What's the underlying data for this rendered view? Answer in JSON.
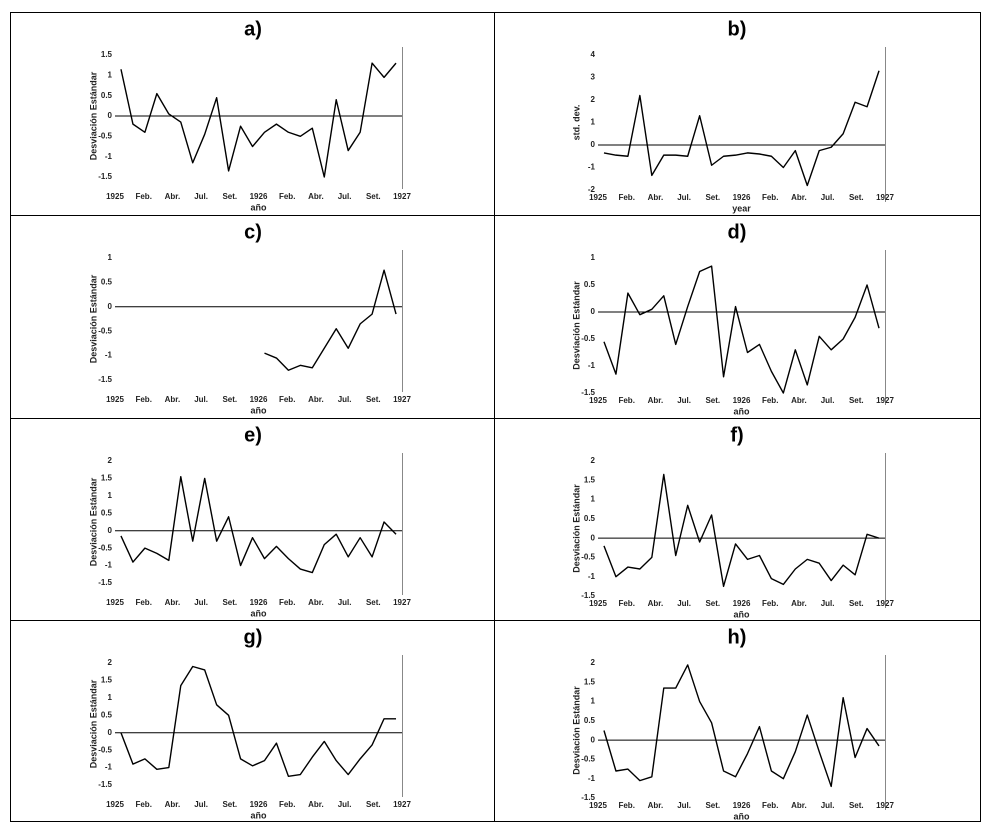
{
  "chart_data": [
    {
      "type": "line",
      "title": "a)",
      "ylabel": "Desviación Estándar",
      "xlabel": "año",
      "color": "#000000",
      "reference_line": 0,
      "x": [
        0.5,
        1.5,
        2.5,
        3.5,
        4.5,
        5.5,
        6.5,
        7.5,
        8.5,
        9.5,
        10.5,
        11.5,
        12.5,
        13.5,
        14.5,
        15.5,
        16.5,
        17.5,
        18.5,
        19.5,
        20.5,
        21.5,
        22.5,
        23.5
      ],
      "values": [
        1.15,
        -0.2,
        -0.4,
        0.55,
        0.05,
        -0.15,
        -1.15,
        -0.45,
        0.45,
        -1.35,
        -0.25,
        -0.75,
        -0.4,
        -0.2,
        -0.4,
        -0.5,
        -0.3,
        -1.5,
        0.4,
        -0.85,
        -0.4,
        1.3,
        0.95,
        1.3
      ],
      "xlim": [
        0,
        24
      ],
      "xticks": [
        {
          "value": 0,
          "label": "1925"
        },
        {
          "value": 2.4,
          "label": "Feb."
        },
        {
          "value": 4.8,
          "label": "Abr."
        },
        {
          "value": 7.2,
          "label": "Jul."
        },
        {
          "value": 9.6,
          "label": "Set."
        },
        {
          "value": 12,
          "label": "1926"
        },
        {
          "value": 14.4,
          "label": "Feb."
        },
        {
          "value": 16.8,
          "label": "Abr."
        },
        {
          "value": 19.2,
          "label": "Jul."
        },
        {
          "value": 21.6,
          "label": "Set."
        },
        {
          "value": 24,
          "label": "1927"
        }
      ],
      "ylim": [
        -1.5,
        1.5
      ],
      "yticks": [
        -1.5,
        -1,
        -0.5,
        0,
        0.5,
        1,
        1.5
      ]
    },
    {
      "type": "line",
      "title": "b)",
      "ylabel": "std. dev.",
      "xlabel": "year",
      "color": "#000000",
      "reference_line": 0,
      "x": [
        0.5,
        1.5,
        2.5,
        3.5,
        4.5,
        5.5,
        6.5,
        7.5,
        8.5,
        9.5,
        10.5,
        11.5,
        12.5,
        13.5,
        14.5,
        15.5,
        16.5,
        17.5,
        18.5,
        19.5,
        20.5,
        21.5,
        22.5,
        23.5
      ],
      "values": [
        -0.35,
        -0.45,
        -0.5,
        2.2,
        -1.35,
        -0.45,
        -0.45,
        -0.5,
        1.3,
        -0.9,
        -0.5,
        -0.45,
        -0.35,
        -0.4,
        -0.5,
        -1.0,
        -0.25,
        -1.8,
        -0.25,
        -0.1,
        0.5,
        1.9,
        1.7,
        3.3
      ],
      "xlim": [
        0,
        24
      ],
      "xticks": [
        {
          "value": 0,
          "label": "1925"
        },
        {
          "value": 2.4,
          "label": "Feb."
        },
        {
          "value": 4.8,
          "label": "Abr."
        },
        {
          "value": 7.2,
          "label": "Jul."
        },
        {
          "value": 9.6,
          "label": "Set."
        },
        {
          "value": 12,
          "label": "1926"
        },
        {
          "value": 14.4,
          "label": "Feb."
        },
        {
          "value": 16.8,
          "label": "Abr."
        },
        {
          "value": 19.2,
          "label": "Jul."
        },
        {
          "value": 21.6,
          "label": "Set."
        },
        {
          "value": 24,
          "label": "1927"
        }
      ],
      "ylim": [
        -2,
        4
      ],
      "yticks": [
        -2,
        -1,
        0,
        1,
        2,
        3,
        4
      ]
    },
    {
      "type": "line",
      "title": "c)",
      "ylabel": "Desviación Estándar",
      "xlabel": "año",
      "color": "#000000",
      "reference_line": 0,
      "x": [
        0.5,
        1.5,
        2.5,
        3.5,
        4.5,
        5.5,
        6.5,
        7.5,
        8.5,
        9.5,
        10.5,
        11.5,
        12.5,
        13.5,
        14.5,
        15.5,
        16.5,
        17.5,
        18.5,
        19.5,
        20.5,
        21.5,
        22.5,
        23.5
      ],
      "values": [
        null,
        null,
        null,
        null,
        null,
        null,
        null,
        null,
        null,
        null,
        null,
        null,
        -0.95,
        -1.05,
        -1.3,
        -1.2,
        -1.25,
        -0.85,
        -0.45,
        -0.85,
        -0.35,
        -0.15,
        0.75,
        -0.15
      ],
      "xlim": [
        0,
        24
      ],
      "xticks": [
        {
          "value": 0,
          "label": "1925"
        },
        {
          "value": 2.4,
          "label": "Feb."
        },
        {
          "value": 4.8,
          "label": "Abr."
        },
        {
          "value": 7.2,
          "label": "Jul."
        },
        {
          "value": 9.6,
          "label": "Set."
        },
        {
          "value": 12,
          "label": "1926"
        },
        {
          "value": 14.4,
          "label": "Feb."
        },
        {
          "value": 16.8,
          "label": "Abr."
        },
        {
          "value": 19.2,
          "label": "Jul."
        },
        {
          "value": 21.6,
          "label": "Set."
        },
        {
          "value": 24,
          "label": "1927"
        }
      ],
      "ylim": [
        -1.5,
        1
      ],
      "yticks": [
        -1.5,
        -1,
        -0.5,
        0,
        0.5,
        1
      ]
    },
    {
      "type": "line",
      "title": "d)",
      "ylabel": "Desviación Estándar",
      "xlabel": "año",
      "color": "#000000",
      "reference_line": 0,
      "x": [
        0.5,
        1.5,
        2.5,
        3.5,
        4.5,
        5.5,
        6.5,
        7.5,
        8.5,
        9.5,
        10.5,
        11.5,
        12.5,
        13.5,
        14.5,
        15.5,
        16.5,
        17.5,
        18.5,
        19.5,
        20.5,
        21.5,
        22.5,
        23.5
      ],
      "values": [
        -0.55,
        -1.15,
        0.35,
        -0.05,
        0.05,
        0.3,
        -0.6,
        0.1,
        0.75,
        0.85,
        -1.2,
        0.1,
        -0.75,
        -0.6,
        -1.1,
        -1.5,
        -0.7,
        -1.35,
        -0.45,
        -0.7,
        -0.5,
        -0.1,
        0.5,
        -0.3
      ],
      "xlim": [
        0,
        24
      ],
      "xticks": [
        {
          "value": 0,
          "label": "1925"
        },
        {
          "value": 2.4,
          "label": "Feb."
        },
        {
          "value": 4.8,
          "label": "Abr."
        },
        {
          "value": 7.2,
          "label": "Jul."
        },
        {
          "value": 9.6,
          "label": "Set."
        },
        {
          "value": 12,
          "label": "1926"
        },
        {
          "value": 14.4,
          "label": "Feb."
        },
        {
          "value": 16.8,
          "label": "Abr."
        },
        {
          "value": 19.2,
          "label": "Jul."
        },
        {
          "value": 21.6,
          "label": "Set."
        },
        {
          "value": 24,
          "label": "1927"
        }
      ],
      "ylim": [
        -1.5,
        1
      ],
      "yticks": [
        -1.5,
        -1,
        -0.5,
        0,
        0.5,
        1
      ]
    },
    {
      "type": "line",
      "title": "e)",
      "ylabel": "Desviación Estándar",
      "xlabel": "año",
      "color": "#000000",
      "reference_line": 0,
      "x": [
        0.5,
        1.5,
        2.5,
        3.5,
        4.5,
        5.5,
        6.5,
        7.5,
        8.5,
        9.5,
        10.5,
        11.5,
        12.5,
        13.5,
        14.5,
        15.5,
        16.5,
        17.5,
        18.5,
        19.5,
        20.5,
        21.5,
        22.5,
        23.5
      ],
      "values": [
        -0.15,
        -0.9,
        -0.5,
        -0.65,
        -0.85,
        1.55,
        -0.3,
        1.5,
        -0.3,
        0.4,
        -1.0,
        -0.2,
        -0.8,
        -0.45,
        -0.8,
        -1.1,
        -1.2,
        -0.4,
        -0.1,
        -0.75,
        -0.2,
        -0.75,
        0.25,
        -0.1
      ],
      "xlim": [
        0,
        24
      ],
      "xticks": [
        {
          "value": 0,
          "label": "1925"
        },
        {
          "value": 2.4,
          "label": "Feb."
        },
        {
          "value": 4.8,
          "label": "Abr."
        },
        {
          "value": 7.2,
          "label": "Jul."
        },
        {
          "value": 9.6,
          "label": "Set."
        },
        {
          "value": 12,
          "label": "1926"
        },
        {
          "value": 14.4,
          "label": "Feb."
        },
        {
          "value": 16.8,
          "label": "Abr."
        },
        {
          "value": 19.2,
          "label": "Jul."
        },
        {
          "value": 21.6,
          "label": "Set."
        },
        {
          "value": 24,
          "label": "1927"
        }
      ],
      "ylim": [
        -1.5,
        2
      ],
      "yticks": [
        -1.5,
        -1,
        -0.5,
        0,
        0.5,
        1,
        1.5,
        2
      ]
    },
    {
      "type": "line",
      "title": "f)",
      "ylabel": "Desviación Estándar",
      "xlabel": "año",
      "color": "#000000",
      "reference_line": 0,
      "x": [
        0.5,
        1.5,
        2.5,
        3.5,
        4.5,
        5.5,
        6.5,
        7.5,
        8.5,
        9.5,
        10.5,
        11.5,
        12.5,
        13.5,
        14.5,
        15.5,
        16.5,
        17.5,
        18.5,
        19.5,
        20.5,
        21.5,
        22.5,
        23.5
      ],
      "values": [
        -0.2,
        -1.0,
        -0.75,
        -0.8,
        -0.5,
        1.65,
        -0.45,
        0.85,
        -0.1,
        0.6,
        -1.25,
        -0.15,
        -0.55,
        -0.45,
        -1.05,
        -1.2,
        -0.8,
        -0.55,
        -0.65,
        -1.1,
        -0.7,
        -0.95,
        0.1,
        0
      ],
      "xlim": [
        0,
        24
      ],
      "xticks": [
        {
          "value": 0,
          "label": "1925"
        },
        {
          "value": 2.4,
          "label": "Feb."
        },
        {
          "value": 4.8,
          "label": "Abr."
        },
        {
          "value": 7.2,
          "label": "Jul."
        },
        {
          "value": 9.6,
          "label": "Set."
        },
        {
          "value": 12,
          "label": "1926"
        },
        {
          "value": 14.4,
          "label": "Feb."
        },
        {
          "value": 16.8,
          "label": "Abr."
        },
        {
          "value": 19.2,
          "label": "Jul."
        },
        {
          "value": 21.6,
          "label": "Set."
        },
        {
          "value": 24,
          "label": "1927"
        }
      ],
      "ylim": [
        -1.5,
        2
      ],
      "yticks": [
        -1.5,
        -1,
        -0.5,
        0,
        0.5,
        1,
        1.5,
        2
      ]
    },
    {
      "type": "line",
      "title": "g)",
      "ylabel": "Desviación Estándar",
      "xlabel": "año",
      "color": "#000000",
      "reference_line": 0,
      "x": [
        0.5,
        1.5,
        2.5,
        3.5,
        4.5,
        5.5,
        6.5,
        7.5,
        8.5,
        9.5,
        10.5,
        11.5,
        12.5,
        13.5,
        14.5,
        15.5,
        16.5,
        17.5,
        18.5,
        19.5,
        20.5,
        21.5,
        22.5,
        23.5
      ],
      "values": [
        0,
        -0.9,
        -0.75,
        -1.05,
        -1.0,
        1.35,
        1.9,
        1.8,
        0.8,
        0.5,
        -0.75,
        -0.95,
        -0.8,
        -0.3,
        -1.25,
        -1.2,
        -0.7,
        -0.25,
        -0.8,
        -1.2,
        -0.75,
        -0.35,
        0.4,
        0.4
      ],
      "xlim": [
        0,
        24
      ],
      "xticks": [
        {
          "value": 0,
          "label": "1925"
        },
        {
          "value": 2.4,
          "label": "Feb."
        },
        {
          "value": 4.8,
          "label": "Abr."
        },
        {
          "value": 7.2,
          "label": "Jul."
        },
        {
          "value": 9.6,
          "label": "Set."
        },
        {
          "value": 12,
          "label": "1926"
        },
        {
          "value": 14.4,
          "label": "Feb."
        },
        {
          "value": 16.8,
          "label": "Abr."
        },
        {
          "value": 19.2,
          "label": "Jul."
        },
        {
          "value": 21.6,
          "label": "Set."
        },
        {
          "value": 24,
          "label": "1927"
        }
      ],
      "ylim": [
        -1.5,
        2
      ],
      "yticks": [
        -1.5,
        -1,
        -0.5,
        0,
        0.5,
        1,
        1.5,
        2
      ]
    },
    {
      "type": "line",
      "title": "h)",
      "ylabel": "Desviación Estándar",
      "xlabel": "año",
      "color": "#000000",
      "reference_line": 0,
      "x": [
        0.5,
        1.5,
        2.5,
        3.5,
        4.5,
        5.5,
        6.5,
        7.5,
        8.5,
        9.5,
        10.5,
        11.5,
        12.5,
        13.5,
        14.5,
        15.5,
        16.5,
        17.5,
        18.5,
        19.5,
        20.5,
        21.5,
        22.5,
        23.5
      ],
      "values": [
        0.25,
        -0.8,
        -0.75,
        -1.05,
        -0.95,
        1.35,
        1.35,
        1.95,
        1.0,
        0.45,
        -0.8,
        -0.95,
        -0.35,
        0.35,
        -0.8,
        -1.0,
        -0.3,
        0.65,
        -0.3,
        -1.2,
        1.1,
        -0.45,
        0.3,
        -0.15
      ],
      "xlim": [
        0,
        24
      ],
      "xticks": [
        {
          "value": 0,
          "label": "1925"
        },
        {
          "value": 2.4,
          "label": "Feb."
        },
        {
          "value": 4.8,
          "label": "Abr."
        },
        {
          "value": 7.2,
          "label": "Jul."
        },
        {
          "value": 9.6,
          "label": "Set."
        },
        {
          "value": 12,
          "label": "1926"
        },
        {
          "value": 14.4,
          "label": "Feb."
        },
        {
          "value": 16.8,
          "label": "Abr."
        },
        {
          "value": 19.2,
          "label": "Jul."
        },
        {
          "value": 21.6,
          "label": "Set."
        },
        {
          "value": 24,
          "label": "1927"
        }
      ],
      "ylim": [
        -1.5,
        2
      ],
      "yticks": [
        -1.5,
        -1,
        -0.5,
        0,
        0.5,
        1,
        1.5,
        2
      ]
    }
  ]
}
